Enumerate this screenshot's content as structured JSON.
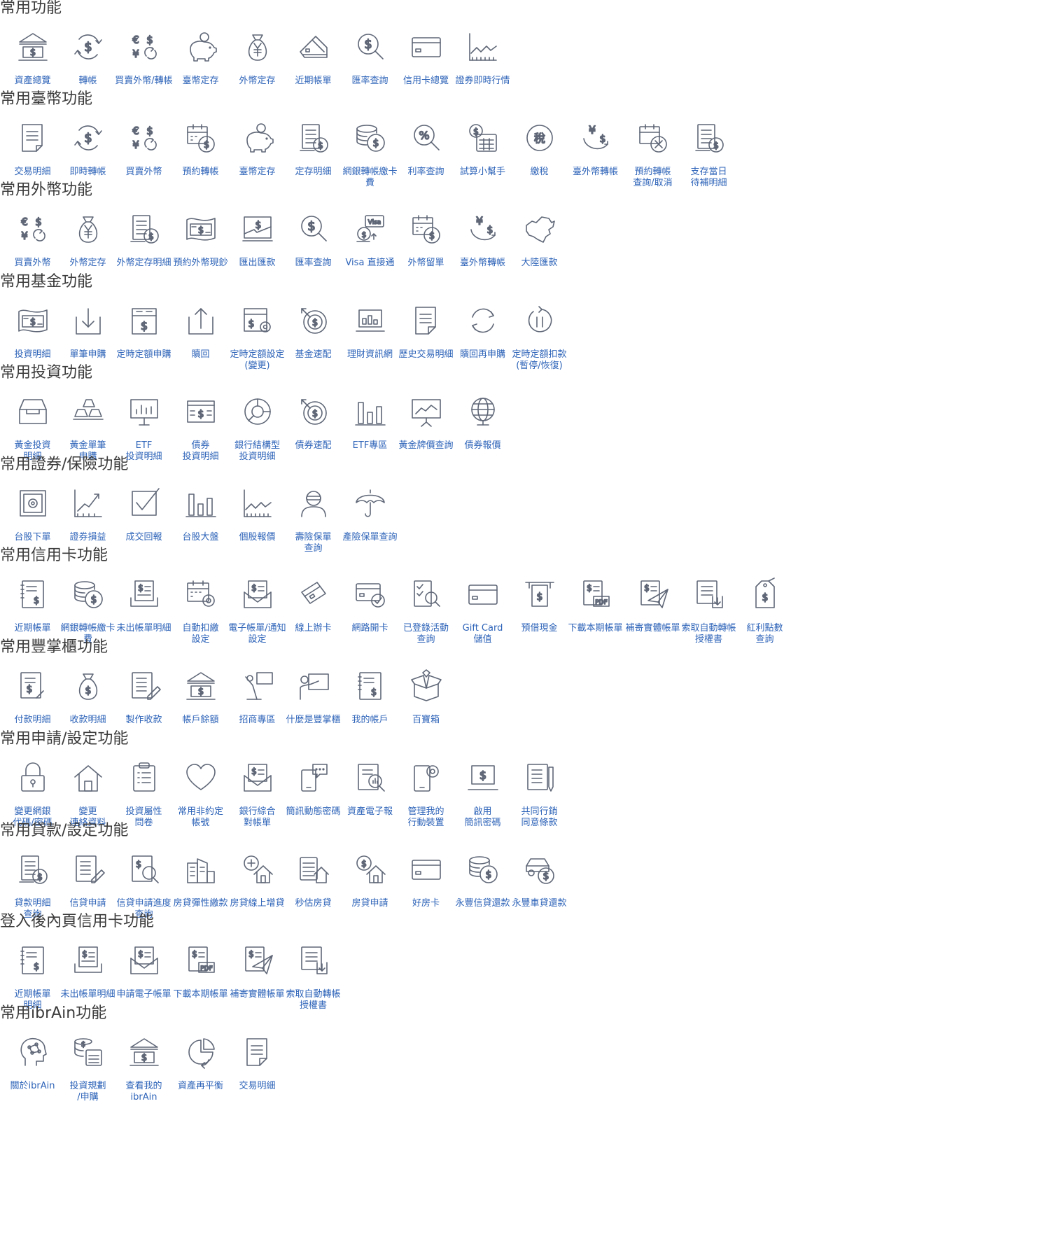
{
  "colors": {
    "icon": "#5f6777",
    "label": "#2d63b8",
    "title": "#3b3b3b"
  },
  "sections": [
    {
      "title": "常用功能",
      "items": [
        {
          "label": "資產總覽",
          "icon": "bank-icon"
        },
        {
          "label": "轉帳",
          "icon": "transfer-dollar-icon"
        },
        {
          "label": "買賣外幣/轉帳",
          "icon": "currency-exchange-icon"
        },
        {
          "label": "臺幣定存",
          "icon": "piggy-bank-icon"
        },
        {
          "label": "外幣定存",
          "icon": "yen-money-bag-icon"
        },
        {
          "label": "近期帳單",
          "icon": "card-tilted-icon"
        },
        {
          "label": "匯率查詢",
          "icon": "dollar-search-icon"
        },
        {
          "label": "信用卡總覽",
          "icon": "credit-card-icon"
        },
        {
          "label": "證券即時行情",
          "icon": "line-chart-icon"
        }
      ]
    },
    {
      "title": "常用臺幣功能",
      "items": [
        {
          "label": "交易明細",
          "icon": "document-icon"
        },
        {
          "label": "即時轉帳",
          "icon": "transfer-dollar-icon"
        },
        {
          "label": "買賣外幣",
          "icon": "currency-exchange-icon"
        },
        {
          "label": "預約轉帳",
          "icon": "calendar-dollar-icon"
        },
        {
          "label": "臺幣定存",
          "icon": "piggy-bank-icon"
        },
        {
          "label": "定存明細",
          "icon": "statement-coin-icon"
        },
        {
          "label": "網銀轉帳繳卡\n費",
          "icon": "coins-stack-icon"
        },
        {
          "label": "利率查詢",
          "icon": "percent-search-icon"
        },
        {
          "label": "試算小幫手",
          "icon": "calculator-dollar-icon"
        },
        {
          "label": "繳稅",
          "icon": "tax-badge-icon"
        },
        {
          "label": "臺外幣轉帳",
          "icon": "yen-dollar-swap-icon"
        },
        {
          "label": "預約轉帳\n查詢/取消",
          "icon": "calendar-cancel-icon"
        },
        {
          "label": "支存當日\n待補明細",
          "icon": "statement-coin-icon"
        }
      ]
    },
    {
      "title": "常用外幣功能",
      "items": [
        {
          "label": "買賣外幣",
          "icon": "currency-exchange-icon"
        },
        {
          "label": "外幣定存",
          "icon": "yen-money-bag-icon"
        },
        {
          "label": "外幣定存明細",
          "icon": "statement-coin-icon"
        },
        {
          "label": "預約外幣現鈔",
          "icon": "banknote-wave-icon"
        },
        {
          "label": "匯出匯款",
          "icon": "remittance-icon"
        },
        {
          "label": "匯率查詢",
          "icon": "dollar-search-icon"
        },
        {
          "label": "Visa 直接通",
          "icon": "visa-card-icon"
        },
        {
          "label": "外幣留單",
          "icon": "calendar-dollar-icon"
        },
        {
          "label": "臺外幣轉帳",
          "icon": "yen-dollar-swap-icon"
        },
        {
          "label": "大陸匯款",
          "icon": "china-map-icon"
        }
      ]
    },
    {
      "title": "常用基金功能",
      "items": [
        {
          "label": "投資明細",
          "icon": "banknote-wave-icon"
        },
        {
          "label": "單筆申購",
          "icon": "download-tray-icon"
        },
        {
          "label": "定時定額申購",
          "icon": "calendar-box-dollar-icon"
        },
        {
          "label": "贖回",
          "icon": "upload-tray-icon"
        },
        {
          "label": "定時定額設定\n(變更)",
          "icon": "calendar-gear-dollar-icon"
        },
        {
          "label": "基金速配",
          "icon": "target-dollar-icon"
        },
        {
          "label": "理財資訊網",
          "icon": "laptop-chart-icon"
        },
        {
          "label": "歷史交易明細",
          "icon": "document-folded-icon"
        },
        {
          "label": "贖回再申購",
          "icon": "refresh-icon"
        },
        {
          "label": "定時定額扣款\n(暫停/恢復)",
          "icon": "pause-cycle-icon"
        }
      ]
    },
    {
      "title": "常用投資功能",
      "items": [
        {
          "label": "黃金投資\n明細",
          "icon": "inbox-tray-icon"
        },
        {
          "label": "黃金單筆\n申購",
          "icon": "gold-bars-icon"
        },
        {
          "label": "ETF\n投資明細",
          "icon": "presentation-board-icon"
        },
        {
          "label": "債券\n投資明細",
          "icon": "bond-note-icon"
        },
        {
          "label": "銀行結構型\n投資明細",
          "icon": "pie-chart-icon"
        },
        {
          "label": "債券速配",
          "icon": "target-dollar-icon"
        },
        {
          "label": "ETF專區",
          "icon": "bar-chart-icon"
        },
        {
          "label": "黃金牌價查詢",
          "icon": "trend-board-icon"
        },
        {
          "label": "債券報價",
          "icon": "globe-icon"
        }
      ]
    },
    {
      "title": "常用證券/保險功能",
      "items": [
        {
          "label": "台股下單",
          "icon": "safe-icon"
        },
        {
          "label": "證券損益",
          "icon": "trend-up-icon"
        },
        {
          "label": "成交回報",
          "icon": "checkbox-icon"
        },
        {
          "label": "台股大盤",
          "icon": "bar-chart-icon"
        },
        {
          "label": "個股報價",
          "icon": "line-chart-icon"
        },
        {
          "label": "壽險保單\n查詢",
          "icon": "person-mask-icon"
        },
        {
          "label": "產險保單查詢",
          "icon": "umbrella-icon"
        }
      ]
    },
    {
      "title": "常用信用卡功能",
      "items": [
        {
          "label": "近期帳單",
          "icon": "notebook-dollar-icon"
        },
        {
          "label": "網銀轉帳繳卡\n費",
          "icon": "coins-stack-icon"
        },
        {
          "label": "未出帳單明細",
          "icon": "bill-tray-icon"
        },
        {
          "label": "自動扣繳\n設定",
          "icon": "calendar-gear-icon"
        },
        {
          "label": "電子帳單/通知\n設定",
          "icon": "envelope-bill-icon"
        },
        {
          "label": "線上辦卡",
          "icon": "cards-tilted-icon"
        },
        {
          "label": "網路開卡",
          "icon": "card-check-icon"
        },
        {
          "label": "已登錄活動\n查詢",
          "icon": "checklist-search-icon"
        },
        {
          "label": "Gift Card\n儲值",
          "icon": "credit-card-icon"
        },
        {
          "label": "預借現金",
          "icon": "atm-cash-icon"
        },
        {
          "label": "下載本期帳單",
          "icon": "pdf-bill-icon"
        },
        {
          "label": "補寄實體帳單",
          "icon": "bill-send-icon"
        },
        {
          "label": "索取自動轉帳\n授權書",
          "icon": "bill-download-icon"
        },
        {
          "label": "紅利點數\n查詢",
          "icon": "price-tag-icon"
        }
      ]
    },
    {
      "title": "常用豐掌櫃功能",
      "items": [
        {
          "label": "付款明細",
          "icon": "payment-doc-icon"
        },
        {
          "label": "收款明細",
          "icon": "money-bag-icon"
        },
        {
          "label": "製作收款",
          "icon": "doc-pencil-icon"
        },
        {
          "label": "帳戶餘額",
          "icon": "bank-icon"
        },
        {
          "label": "招商專區",
          "icon": "presenter-icon"
        },
        {
          "label": "什麼是豐掌櫃",
          "icon": "teacher-board-icon"
        },
        {
          "label": "我的帳戶",
          "icon": "notebook-dollar-icon"
        },
        {
          "label": "百寶箱",
          "icon": "treasure-box-icon"
        }
      ]
    },
    {
      "title": "常用申請/設定功能",
      "items": [
        {
          "label": "變更網銀\n代碼/密碼",
          "icon": "lock-icon"
        },
        {
          "label": "變更\n連絡資料",
          "icon": "home-icon"
        },
        {
          "label": "投資屬性\n問卷",
          "icon": "clipboard-icon"
        },
        {
          "label": "常用非約定\n帳號",
          "icon": "heart-icon"
        },
        {
          "label": "銀行綜合\n對帳單",
          "icon": "envelope-bill-icon"
        },
        {
          "label": "簡訊動態密碼",
          "icon": "phone-chat-icon"
        },
        {
          "label": "資產電子報",
          "icon": "report-search-icon"
        },
        {
          "label": "管理我的\n行動裝置",
          "icon": "phone-gear-icon"
        },
        {
          "label": "啟用\n簡訊密碼",
          "icon": "laptop-dollar-icon"
        },
        {
          "label": "共同行銷\n同意條款",
          "icon": "doc-pen-icon"
        }
      ]
    },
    {
      "title": "常用貸款/設定功能",
      "items": [
        {
          "label": "貸款明細\n查詢",
          "icon": "statement-coin-icon"
        },
        {
          "label": "信貸申請",
          "icon": "doc-pencil-icon"
        },
        {
          "label": "信貸申請進度\n查詢",
          "icon": "doc-dollar-search-icon"
        },
        {
          "label": "房貸彈性繳款",
          "icon": "buildings-icon"
        },
        {
          "label": "房貸線上增貸",
          "icon": "house-plus-icon"
        },
        {
          "label": "秒估房貸",
          "icon": "calculator-house-icon"
        },
        {
          "label": "房貸申請",
          "icon": "house-dollar-icon"
        },
        {
          "label": "好房卡",
          "icon": "credit-card-icon"
        },
        {
          "label": "永豐信貸還款",
          "icon": "coins-stack-icon"
        },
        {
          "label": "永豐車貸還款",
          "icon": "car-dollar-icon"
        }
      ]
    },
    {
      "title": "登入後內頁信用卡功能",
      "items": [
        {
          "label": "近期帳單\n明細",
          "icon": "notebook-dollar-icon"
        },
        {
          "label": "未出帳單明細",
          "icon": "bill-tray-icon"
        },
        {
          "label": "申請電子帳單",
          "icon": "envelope-bill-icon"
        },
        {
          "label": "下載本期帳單",
          "icon": "pdf-bill-icon"
        },
        {
          "label": "補寄實體帳單",
          "icon": "bill-send-icon"
        },
        {
          "label": "索取自動轉帳\n授權書",
          "icon": "bill-download-icon"
        }
      ]
    },
    {
      "title": "常用ibrAin功能",
      "items": [
        {
          "label": "關於ibrAin",
          "icon": "brain-head-icon"
        },
        {
          "label": "投資規劃\n/申購",
          "icon": "coins-calculator-icon"
        },
        {
          "label": "查看我的\nibrAin",
          "icon": "bank-icon"
        },
        {
          "label": "資產再平衡",
          "icon": "pie-cycle-icon"
        },
        {
          "label": "交易明細",
          "icon": "document-folded-icon"
        }
      ]
    }
  ]
}
